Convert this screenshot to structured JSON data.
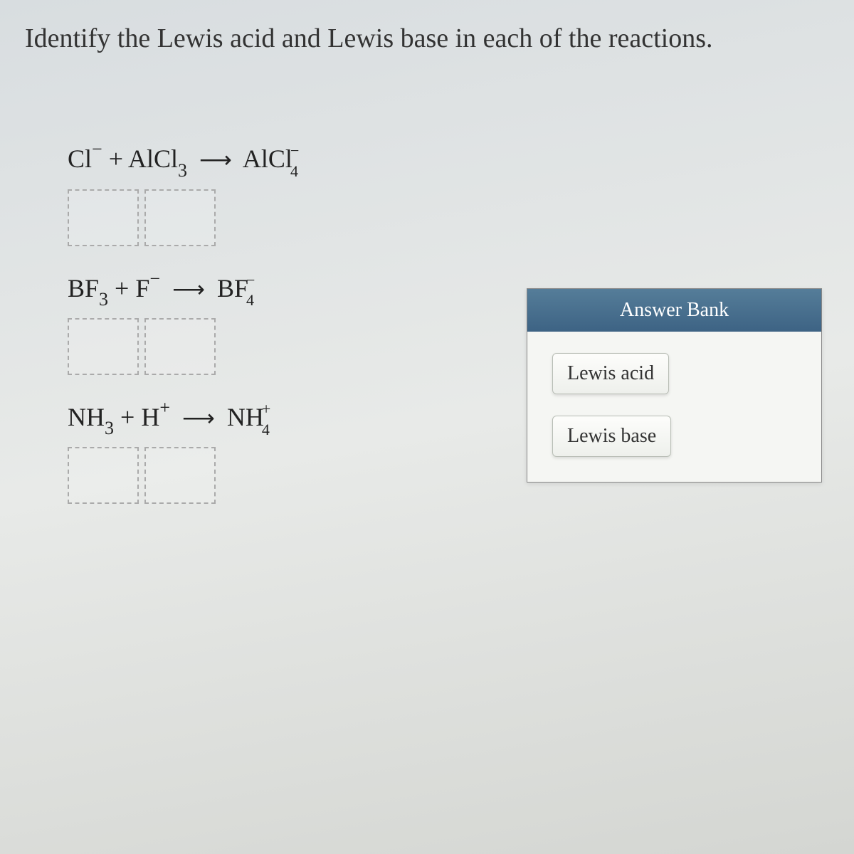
{
  "question": "Identify the Lewis acid and Lewis base in each of the reactions.",
  "reactions": {
    "r1": {
      "reactant1": {
        "pre": "Cl",
        "sup": "−"
      },
      "plus": "+",
      "reactant2": {
        "pre": "AlCl",
        "sub": "3"
      },
      "arrow": "⟶",
      "product": {
        "pre": "AlCl",
        "sub": "4",
        "sup": "−"
      }
    },
    "r2": {
      "reactant1": {
        "pre": "BF",
        "sub": "3"
      },
      "plus": "+",
      "reactant2": {
        "pre": "F",
        "sup": "−"
      },
      "arrow": "⟶",
      "product": {
        "pre": "BF",
        "sub": "4",
        "sup": "−"
      }
    },
    "r3": {
      "reactant1": {
        "pre": "NH",
        "sub": "3"
      },
      "plus": "+",
      "reactant2": {
        "pre": "H",
        "sup": "+"
      },
      "arrow": "⟶",
      "product": {
        "pre": "NH",
        "sub": "4",
        "sup": "+"
      }
    }
  },
  "answerBank": {
    "header": "Answer Bank",
    "items": {
      "acid": "Lewis acid",
      "base": "Lewis base"
    }
  },
  "colors": {
    "header_bg_top": "#557d99",
    "header_bg_bottom": "#3d6384",
    "chip_border": "#b8bdb5",
    "dropzone_border": "#aaaaaa",
    "page_bg": "#e3e5e1"
  }
}
